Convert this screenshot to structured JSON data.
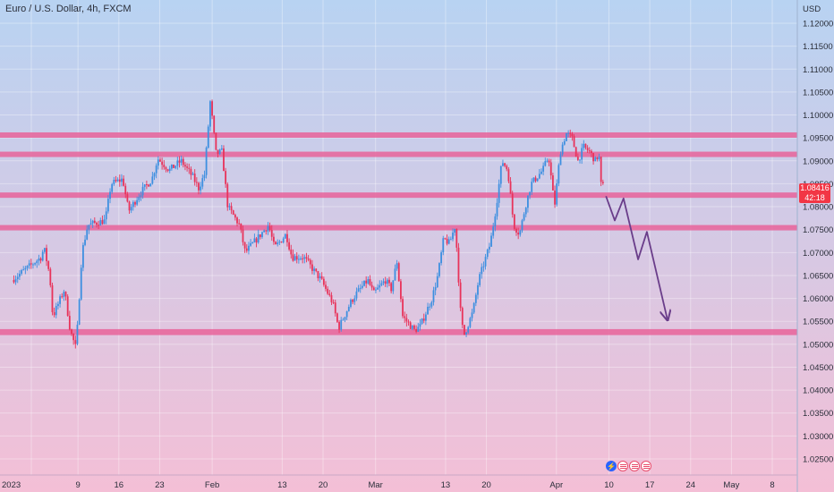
{
  "symbol_title": "Euro / U.S. Dollar, 4h, FXCM",
  "currency": "USD",
  "last_price": {
    "value": "1.08416",
    "countdown": "42:18"
  },
  "colors": {
    "background_top": "#b8d3f2",
    "background_bottom": "#f4bfd6",
    "zone": "#e8639a",
    "bull": "#3d8fe0",
    "bear": "#e8335a",
    "arrow": "#6a3d8a"
  },
  "icons": [
    "lightning-icon",
    "us-flag-icon",
    "us-flag-icon",
    "us-flag-icon"
  ],
  "chart_data": {
    "type": "candlestick",
    "title": "Euro / U.S. Dollar, 4h, FXCM",
    "ylim": [
      1.0215,
      1.1265
    ],
    "y_ticks": [
      "1.12000",
      "1.11500",
      "1.11000",
      "1.10500",
      "1.10000",
      "1.09500",
      "1.09000",
      "1.08500",
      "1.08000",
      "1.07500",
      "1.07000",
      "1.06500",
      "1.06000",
      "1.05500",
      "1.05000",
      "1.04500",
      "1.04000",
      "1.03500",
      "1.03000",
      "1.02500"
    ],
    "x_ticks": [
      {
        "label": "2023",
        "day": 0
      },
      {
        "label": "9",
        "day": 8
      },
      {
        "label": "16",
        "day": 15
      },
      {
        "label": "23",
        "day": 22
      },
      {
        "label": "Feb",
        "day": 31
      },
      {
        "label": "13",
        "day": 43
      },
      {
        "label": "20",
        "day": 50
      },
      {
        "label": "Mar",
        "day": 59
      },
      {
        "label": "13",
        "day": 71
      },
      {
        "label": "20",
        "day": 78
      },
      {
        "label": "Apr",
        "day": 90
      },
      {
        "label": "10",
        "day": 99
      },
      {
        "label": "17",
        "day": 106
      },
      {
        "label": "24",
        "day": 113
      },
      {
        "label": "May",
        "day": 120
      },
      {
        "label": "8",
        "day": 127
      }
    ],
    "zones": [
      {
        "low": 1.0955,
        "high": 1.0962
      },
      {
        "low": 1.0913,
        "high": 1.092
      },
      {
        "low": 1.0825,
        "high": 1.0831
      },
      {
        "low": 1.0752,
        "high": 1.076
      },
      {
        "low": 1.052,
        "high": 1.0533
      }
    ],
    "projection_path": [
      {
        "day": 98.5,
        "price": 1.0823
      },
      {
        "day": 100,
        "price": 1.077
      },
      {
        "day": 101.5,
        "price": 1.0818
      },
      {
        "day": 104,
        "price": 1.0685
      },
      {
        "day": 105.5,
        "price": 1.0745
      },
      {
        "day": 109,
        "price": 1.0555
      }
    ],
    "price_path": [
      {
        "day": -3,
        "price": 1.064
      },
      {
        "day": -1,
        "price": 1.066
      },
      {
        "day": 2,
        "price": 1.069
      },
      {
        "day": 2.5,
        "price": 1.071
      },
      {
        "day": 3.5,
        "price": 1.065
      },
      {
        "day": 4,
        "price": 1.056
      },
      {
        "day": 5,
        "price": 1.059
      },
      {
        "day": 6,
        "price": 1.062
      },
      {
        "day": 7,
        "price": 1.053
      },
      {
        "day": 8,
        "price": 1.049
      },
      {
        "day": 9,
        "price": 1.07
      },
      {
        "day": 10,
        "price": 1.076
      },
      {
        "day": 13,
        "price": 1.077
      },
      {
        "day": 14,
        "price": 1.085
      },
      {
        "day": 16,
        "price": 1.086
      },
      {
        "day": 17,
        "price": 1.079
      },
      {
        "day": 19,
        "price": 1.083
      },
      {
        "day": 21,
        "price": 1.086
      },
      {
        "day": 22,
        "price": 1.0905
      },
      {
        "day": 24,
        "price": 1.088
      },
      {
        "day": 26,
        "price": 1.09
      },
      {
        "day": 28,
        "price": 1.0865
      },
      {
        "day": 29,
        "price": 1.084
      },
      {
        "day": 30,
        "price": 1.087
      },
      {
        "day": 31,
        "price": 1.103
      },
      {
        "day": 32,
        "price": 1.0915
      },
      {
        "day": 33,
        "price": 1.092
      },
      {
        "day": 34,
        "price": 1.08
      },
      {
        "day": 36,
        "price": 1.076
      },
      {
        "day": 37,
        "price": 1.07
      },
      {
        "day": 39,
        "price": 1.073
      },
      {
        "day": 41,
        "price": 1.076
      },
      {
        "day": 42,
        "price": 1.071
      },
      {
        "day": 44,
        "price": 1.074
      },
      {
        "day": 45,
        "price": 1.069
      },
      {
        "day": 47,
        "price": 1.069
      },
      {
        "day": 50,
        "price": 1.064
      },
      {
        "day": 52,
        "price": 1.059
      },
      {
        "day": 53,
        "price": 1.0535
      },
      {
        "day": 55,
        "price": 1.059
      },
      {
        "day": 56,
        "price": 1.061
      },
      {
        "day": 58,
        "price": 1.064
      },
      {
        "day": 59,
        "price": 1.061
      },
      {
        "day": 61,
        "price": 1.064
      },
      {
        "day": 62,
        "price": 1.062
      },
      {
        "day": 63,
        "price": 1.068
      },
      {
        "day": 64,
        "price": 1.056
      },
      {
        "day": 66,
        "price": 1.053
      },
      {
        "day": 67,
        "price": 1.054
      },
      {
        "day": 69,
        "price": 1.06
      },
      {
        "day": 70,
        "price": 1.065
      },
      {
        "day": 71,
        "price": 1.073
      },
      {
        "day": 72,
        "price": 1.072
      },
      {
        "day": 73,
        "price": 1.076
      },
      {
        "day": 74,
        "price": 1.055
      },
      {
        "day": 74.5,
        "price": 1.052
      },
      {
        "day": 76,
        "price": 1.057
      },
      {
        "day": 77,
        "price": 1.064
      },
      {
        "day": 78,
        "price": 1.068
      },
      {
        "day": 79,
        "price": 1.072
      },
      {
        "day": 80,
        "price": 1.08
      },
      {
        "day": 81,
        "price": 1.09
      },
      {
        "day": 82,
        "price": 1.088
      },
      {
        "day": 83,
        "price": 1.076
      },
      {
        "day": 84,
        "price": 1.074
      },
      {
        "day": 85,
        "price": 1.08
      },
      {
        "day": 86,
        "price": 1.085
      },
      {
        "day": 88,
        "price": 1.088
      },
      {
        "day": 89,
        "price": 1.091
      },
      {
        "day": 90,
        "price": 1.08
      },
      {
        "day": 91,
        "price": 1.092
      },
      {
        "day": 92,
        "price": 1.096
      },
      {
        "day": 93,
        "price": 1.095
      },
      {
        "day": 94,
        "price": 1.09
      },
      {
        "day": 95,
        "price": 1.093
      },
      {
        "day": 96,
        "price": 1.092
      },
      {
        "day": 97,
        "price": 1.09
      },
      {
        "day": 97.6,
        "price": 1.0915
      },
      {
        "day": 98,
        "price": 1.0845
      }
    ]
  }
}
